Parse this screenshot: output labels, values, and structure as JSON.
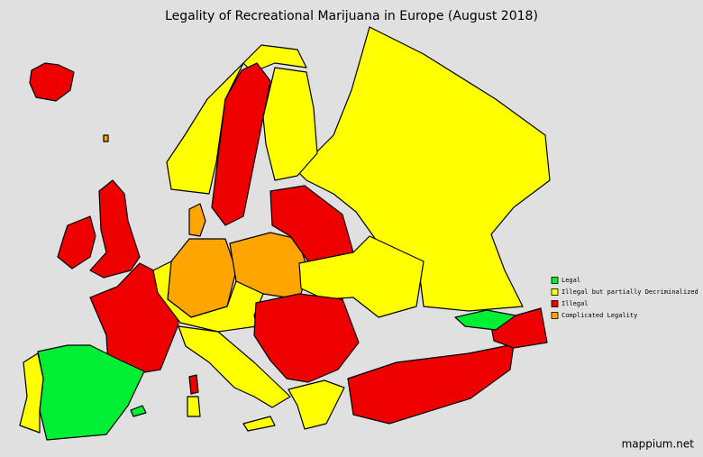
{
  "title": "Legality of Recreational Marijuana in Europe (August 2018)",
  "legend": [
    {
      "label": "Legal",
      "color": "#00ee33"
    },
    {
      "label": "Illegal but partially Decriminalized",
      "color": "#ffff00"
    },
    {
      "label": "Illegal",
      "color": "#ee0000"
    },
    {
      "label": "Complicated Legality",
      "color": "#ffa500"
    }
  ],
  "credit": "mappium.net"
}
